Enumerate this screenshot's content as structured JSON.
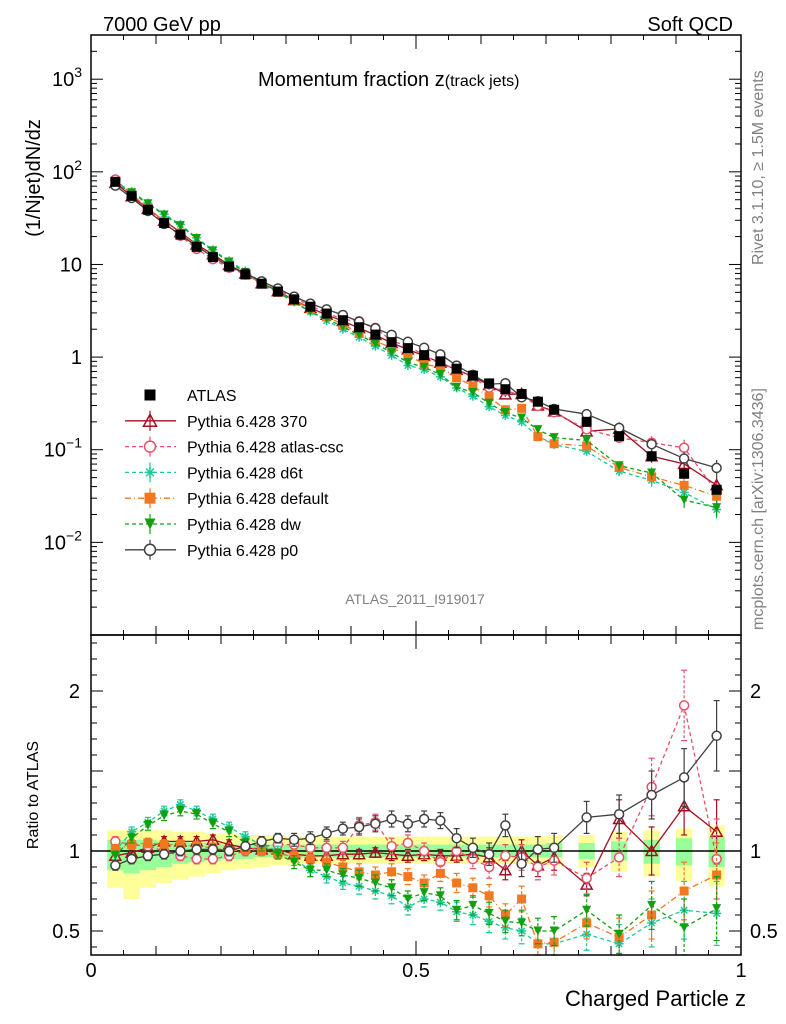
{
  "header": {
    "left": "7000 GeV pp",
    "right": "Soft QCD"
  },
  "side_labels": {
    "rivet": "Rivet 3.1.10, ≥ 1.5M events",
    "mcplots": "mcplots.cern.ch [arXiv:1306.3436]"
  },
  "chart_data": {
    "type": "scatter",
    "title_main": "Momentum fraction z",
    "title_sub": "(track jets)",
    "analysis_tag": "ATLAS_2011_I919017",
    "xlabel": "Charged Particle z",
    "ylabel_main": "(1/Njet)dN/dz",
    "ylabel_ratio": "Ratio to ATLAS",
    "xlim": [
      0,
      1
    ],
    "ylim_main": [
      0.001,
      3000
    ],
    "ylim_ratio": [
      0.35,
      2.35
    ],
    "y_scale_main": "log",
    "x_ticks": [
      "0",
      "0.5",
      "1"
    ],
    "y_ticks_main": [
      "10^-2",
      "10^-1",
      "1",
      "10",
      "10^2",
      "10^3"
    ],
    "y_ticks_ratio": [
      "0.5",
      "1",
      "2"
    ],
    "legend_position": "left-middle",
    "x": [
      0.0375,
      0.0625,
      0.0875,
      0.1125,
      0.1375,
      0.1625,
      0.1875,
      0.2125,
      0.2375,
      0.2625,
      0.2875,
      0.3125,
      0.3375,
      0.3625,
      0.3875,
      0.4125,
      0.4375,
      0.4625,
      0.4875,
      0.5125,
      0.5375,
      0.5625,
      0.5875,
      0.6125,
      0.6375,
      0.6625,
      0.6875,
      0.7125,
      0.7625,
      0.8125,
      0.8625,
      0.9125,
      0.9625
    ],
    "atlas": [
      78,
      55,
      39,
      28,
      21,
      15.5,
      12,
      9.5,
      7.8,
      6.2,
      5.1,
      4.2,
      3.5,
      2.95,
      2.5,
      2.1,
      1.75,
      1.45,
      1.25,
      1.05,
      0.9,
      0.75,
      0.63,
      0.52,
      0.45,
      0.4,
      0.33,
      0.27,
      0.2,
      0.14,
      0.085,
      0.055,
      0.037
    ],
    "band_outer": [
      [
        0.77,
        1.13
      ],
      [
        0.7,
        1.13
      ],
      [
        0.77,
        1.13
      ],
      [
        0.8,
        1.13
      ],
      [
        0.82,
        1.12
      ],
      [
        0.84,
        1.12
      ],
      [
        0.86,
        1.11
      ],
      [
        0.88,
        1.11
      ],
      [
        0.89,
        1.1
      ],
      [
        0.9,
        1.1
      ],
      [
        0.91,
        1.1
      ],
      [
        0.91,
        1.09
      ],
      [
        0.92,
        1.09
      ],
      [
        0.92,
        1.09
      ],
      [
        0.92,
        1.09
      ],
      [
        0.92,
        1.09
      ],
      [
        0.92,
        1.09
      ],
      [
        0.92,
        1.09
      ],
      [
        0.92,
        1.09
      ],
      [
        0.92,
        1.09
      ],
      [
        0.92,
        1.09
      ],
      [
        0.92,
        1.09
      ],
      [
        0.92,
        1.09
      ],
      [
        0.92,
        1.09
      ],
      [
        0.92,
        1.09
      ],
      [
        0.92,
        1.09
      ],
      [
        0.92,
        1.09
      ],
      [
        0.91,
        1.1
      ],
      [
        0.9,
        1.1
      ],
      [
        0.87,
        1.12
      ],
      [
        0.84,
        1.13
      ],
      [
        0.81,
        1.14
      ],
      [
        0.78,
        1.16
      ]
    ],
    "band_inner": [
      [
        0.88,
        1.07
      ],
      [
        0.86,
        1.07
      ],
      [
        0.88,
        1.07
      ],
      [
        0.9,
        1.06
      ],
      [
        0.92,
        1.06
      ],
      [
        0.93,
        1.05
      ],
      [
        0.94,
        1.05
      ],
      [
        0.95,
        1.04
      ],
      [
        0.95,
        1.04
      ],
      [
        0.96,
        1.04
      ],
      [
        0.96,
        1.04
      ],
      [
        0.96,
        1.04
      ],
      [
        0.96,
        1.04
      ],
      [
        0.96,
        1.04
      ],
      [
        0.96,
        1.04
      ],
      [
        0.96,
        1.04
      ],
      [
        0.96,
        1.04
      ],
      [
        0.96,
        1.04
      ],
      [
        0.96,
        1.04
      ],
      [
        0.96,
        1.04
      ],
      [
        0.96,
        1.04
      ],
      [
        0.96,
        1.04
      ],
      [
        0.96,
        1.04
      ],
      [
        0.96,
        1.04
      ],
      [
        0.96,
        1.04
      ],
      [
        0.96,
        1.04
      ],
      [
        0.96,
        1.04
      ],
      [
        0.96,
        1.05
      ],
      [
        0.95,
        1.05
      ],
      [
        0.94,
        1.06
      ],
      [
        0.92,
        1.07
      ],
      [
        0.91,
        1.08
      ],
      [
        0.9,
        1.09
      ]
    ],
    "series": [
      {
        "name": "ATLAS",
        "color": "#000000",
        "marker": "square-filled",
        "ratio": []
      },
      {
        "name": "Pythia 6.428 370",
        "color": "#a01020",
        "marker": "triangle-open",
        "dash": "solid",
        "ratio": [
          0.97,
          0.99,
          1.02,
          1.06,
          1.06,
          1.06,
          1.07,
          1.04,
          1.02,
          1.01,
          1.01,
          0.98,
          0.97,
          0.97,
          0.98,
          0.98,
          0.99,
          0.98,
          0.97,
          0.98,
          0.97,
          0.97,
          0.98,
          0.96,
          0.88,
          1.0,
          0.91,
          0.96,
          0.79,
          1.2,
          1.0,
          1.28,
          1.12
        ],
        "ratio_err": [
          0.03,
          0.03,
          0.03,
          0.03,
          0.03,
          0.03,
          0.03,
          0.03,
          0.03,
          0.03,
          0.03,
          0.03,
          0.03,
          0.03,
          0.03,
          0.03,
          0.03,
          0.04,
          0.04,
          0.04,
          0.04,
          0.04,
          0.05,
          0.06,
          0.06,
          0.07,
          0.07,
          0.08,
          0.07,
          0.12,
          0.15,
          0.18,
          0.2
        ]
      },
      {
        "name": "Pythia 6.428 atlas-csc",
        "color": "#e8506a",
        "marker": "circle-open",
        "dash": "4,3",
        "ratio": [
          1.06,
          1.04,
          1.03,
          1.0,
          0.97,
          0.95,
          0.95,
          0.97,
          1.0,
          1.03,
          1.04,
          1.04,
          1.02,
          1.02,
          1.02,
          1.16,
          1.18,
          1.03,
          1.05,
          1.0,
          0.93,
          1.0,
          0.95,
          0.9,
          0.97,
          0.96,
          0.9,
          0.94,
          0.83,
          0.96,
          1.4,
          1.91,
          0.95
        ],
        "ratio_err": [
          0.03,
          0.03,
          0.03,
          0.03,
          0.03,
          0.03,
          0.03,
          0.03,
          0.03,
          0.03,
          0.03,
          0.04,
          0.04,
          0.04,
          0.04,
          0.05,
          0.05,
          0.05,
          0.05,
          0.05,
          0.05,
          0.06,
          0.06,
          0.07,
          0.07,
          0.08,
          0.08,
          0.09,
          0.1,
          0.12,
          0.18,
          0.22,
          0.25
        ]
      },
      {
        "name": "Pythia 6.428 d6t",
        "color": "#1ec89a",
        "marker": "asterisk",
        "dash": "4,3",
        "ratio": [
          1.0,
          1.12,
          1.18,
          1.25,
          1.29,
          1.25,
          1.2,
          1.15,
          1.09,
          1.04,
          1.0,
          0.95,
          0.88,
          0.84,
          0.8,
          0.78,
          0.75,
          0.72,
          0.65,
          0.7,
          0.68,
          0.62,
          0.6,
          0.56,
          0.52,
          0.5,
          0.42,
          0.42,
          0.48,
          0.42,
          0.55,
          0.63,
          0.61
        ],
        "ratio_err": [
          0.03,
          0.03,
          0.03,
          0.03,
          0.03,
          0.03,
          0.03,
          0.03,
          0.03,
          0.03,
          0.03,
          0.04,
          0.04,
          0.04,
          0.04,
          0.05,
          0.05,
          0.05,
          0.05,
          0.05,
          0.05,
          0.06,
          0.06,
          0.07,
          0.07,
          0.08,
          0.08,
          0.09,
          0.1,
          0.12,
          0.15,
          0.18,
          0.2
        ]
      },
      {
        "name": "Pythia 6.428 default",
        "color": "#f07820",
        "marker": "square-filled",
        "dash": "6,3,1,3",
        "ratio": [
          1.01,
          1.04,
          1.05,
          1.04,
          1.04,
          1.03,
          1.02,
          1.0,
          1.01,
          1.0,
          0.98,
          0.97,
          0.95,
          0.93,
          0.9,
          0.87,
          0.85,
          0.87,
          0.84,
          0.8,
          0.86,
          0.8,
          0.77,
          0.72,
          0.6,
          0.7,
          0.42,
          0.43,
          0.55,
          0.46,
          0.6,
          0.75,
          0.85
        ],
        "ratio_err": [
          0.03,
          0.03,
          0.03,
          0.03,
          0.03,
          0.03,
          0.03,
          0.03,
          0.03,
          0.03,
          0.03,
          0.04,
          0.04,
          0.04,
          0.04,
          0.05,
          0.05,
          0.05,
          0.05,
          0.05,
          0.05,
          0.06,
          0.06,
          0.07,
          0.07,
          0.08,
          0.08,
          0.09,
          0.1,
          0.12,
          0.15,
          0.18,
          0.2
        ]
      },
      {
        "name": "Pythia 6.428 dw",
        "color": "#10a010",
        "marker": "triangle-down-filled",
        "dash": "4,3",
        "ratio": [
          0.97,
          1.08,
          1.16,
          1.22,
          1.25,
          1.23,
          1.17,
          1.12,
          1.05,
          1.03,
          0.98,
          0.93,
          0.88,
          0.88,
          0.85,
          0.83,
          0.8,
          0.77,
          0.7,
          0.74,
          0.72,
          0.63,
          0.66,
          0.61,
          0.56,
          0.55,
          0.5,
          0.5,
          0.63,
          0.48,
          0.66,
          0.52,
          0.64
        ],
        "ratio_err": [
          0.03,
          0.03,
          0.03,
          0.03,
          0.03,
          0.03,
          0.03,
          0.03,
          0.03,
          0.03,
          0.03,
          0.04,
          0.04,
          0.04,
          0.04,
          0.05,
          0.05,
          0.05,
          0.05,
          0.05,
          0.05,
          0.06,
          0.06,
          0.07,
          0.07,
          0.08,
          0.08,
          0.09,
          0.1,
          0.12,
          0.15,
          0.18,
          0.2
        ]
      },
      {
        "name": "Pythia 6.428 p0",
        "color": "#404040",
        "marker": "circle-open",
        "dash": "solid",
        "ratio": [
          0.91,
          0.95,
          0.97,
          0.98,
          1.0,
          1.01,
          1.01,
          1.0,
          1.03,
          1.06,
          1.08,
          1.07,
          1.08,
          1.11,
          1.14,
          1.15,
          1.17,
          1.2,
          1.17,
          1.2,
          1.19,
          1.08,
          1.02,
          0.98,
          1.16,
          0.92,
          1.01,
          1.02,
          1.21,
          1.23,
          1.35,
          1.46,
          1.72
        ],
        "ratio_err": [
          0.03,
          0.03,
          0.03,
          0.03,
          0.03,
          0.03,
          0.03,
          0.03,
          0.03,
          0.03,
          0.03,
          0.04,
          0.04,
          0.04,
          0.04,
          0.05,
          0.05,
          0.05,
          0.05,
          0.05,
          0.05,
          0.06,
          0.06,
          0.07,
          0.07,
          0.08,
          0.08,
          0.09,
          0.1,
          0.12,
          0.15,
          0.18,
          0.22
        ]
      }
    ]
  }
}
